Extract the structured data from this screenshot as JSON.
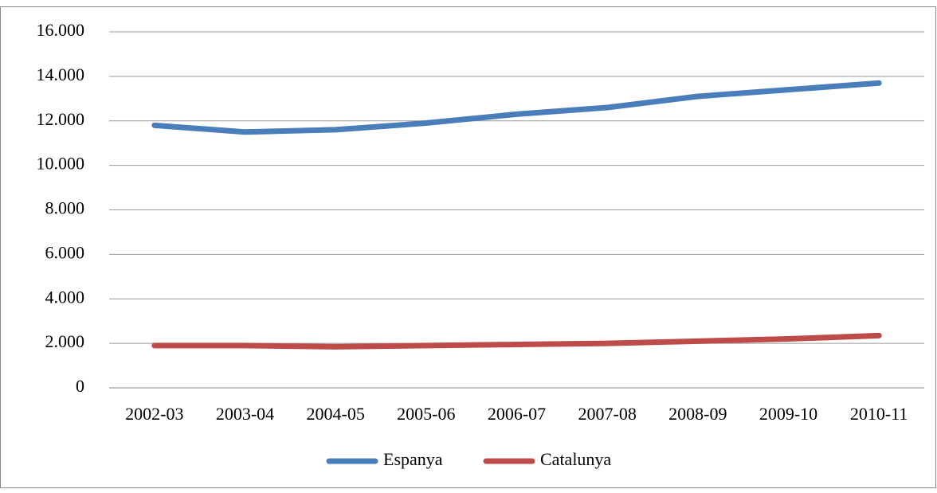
{
  "chart_data": {
    "type": "line",
    "categories": [
      "2002-03",
      "2003-04",
      "2004-05",
      "2005-06",
      "2006-07",
      "2007-08",
      "2008-09",
      "2009-10",
      "2010-11"
    ],
    "series": [
      {
        "name": "Espanya",
        "color": "#4a7ebb",
        "values": [
          11800,
          11500,
          11600,
          11900,
          12300,
          12600,
          13100,
          13400,
          13700
        ]
      },
      {
        "name": "Catalunya",
        "color": "#be4b48",
        "values": [
          1900,
          1900,
          1850,
          1900,
          1950,
          2000,
          2100,
          2200,
          2350
        ]
      }
    ],
    "ylim": [
      0,
      16000
    ],
    "yticks": [
      0,
      {
        "value": 2000,
        "label": "2.000"
      },
      {
        "value": 4000,
        "label": "4.000"
      },
      {
        "value": 6000,
        "label": "6.000"
      },
      {
        "value": 8000,
        "label": "8.000"
      },
      {
        "value": 10000,
        "label": "10.000"
      },
      {
        "value": 12000,
        "label": "12.000"
      },
      {
        "value": 14000,
        "label": "14.000"
      },
      {
        "value": 16000,
        "label": "16.000"
      }
    ],
    "grid": true,
    "legend": "bottom"
  }
}
